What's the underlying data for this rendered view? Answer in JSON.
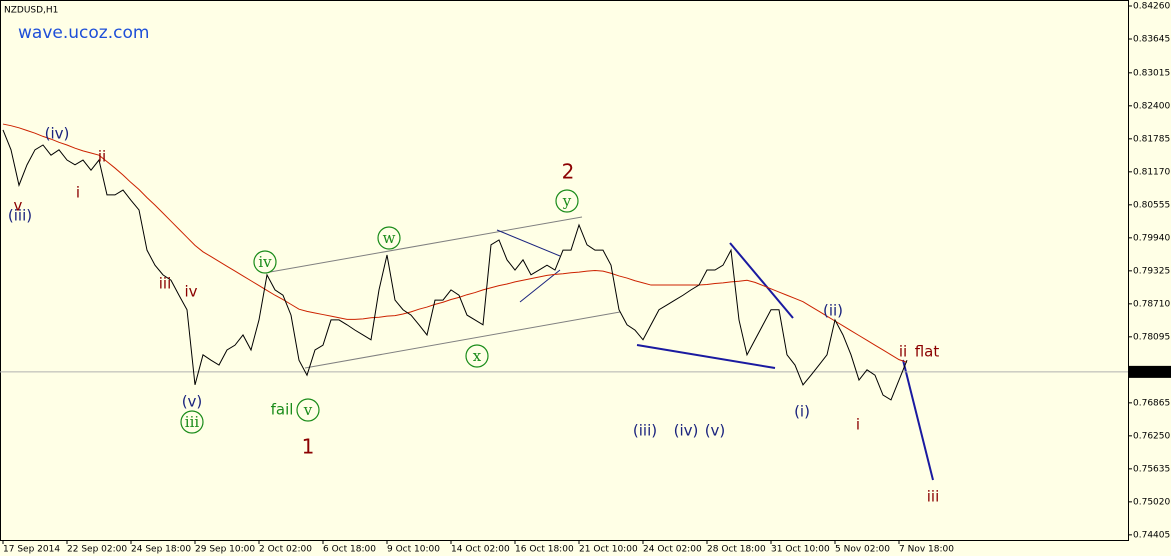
{
  "chart_data": {
    "type": "line",
    "symbol": "NZDUSD,H1",
    "watermark": "wave.ucoz.com",
    "categories": [
      "17 Sep 2014",
      null,
      null,
      null,
      null,
      null,
      null,
      null,
      "22 Sep 02:00",
      null,
      null,
      null,
      null,
      null,
      null,
      null,
      "24 Sep 18:00",
      null,
      null,
      null,
      null,
      null,
      null,
      null,
      "29 Sep 10:00",
      null,
      null,
      null,
      null,
      null,
      null,
      null,
      "2 Oct 02:00",
      null,
      null,
      null,
      null,
      null,
      null,
      null,
      "6 Oct 18:00",
      null,
      null,
      null,
      null,
      null,
      null,
      null,
      "9 Oct 10:00",
      null,
      null,
      null,
      null,
      null,
      null,
      null,
      "14 Oct 02:00",
      null,
      null,
      null,
      null,
      null,
      null,
      null,
      "16 Oct 18:00",
      null,
      null,
      null,
      null,
      null,
      null,
      null,
      "21 Oct 10:00",
      null,
      null,
      null,
      null,
      null,
      null,
      null,
      "24 Oct 02:00",
      null,
      null,
      null,
      null,
      null,
      null,
      null,
      "28 Oct 18:00",
      null,
      null,
      null,
      null,
      null,
      null,
      null,
      "31 Oct 10:00",
      null,
      null,
      null,
      null,
      null,
      null,
      null,
      "5 Nov 02:00",
      null,
      null,
      null,
      null,
      null,
      null,
      null,
      "7 Nov 18:00",
      null
    ],
    "series": [
      {
        "color": "#000000",
        "values": [
          0.8195,
          0.8158,
          0.8092,
          0.813,
          0.8158,
          0.8167,
          0.8148,
          0.8158,
          0.8139,
          0.813,
          0.8139,
          0.812,
          0.8139,
          0.8074,
          0.8074,
          0.8083,
          0.8064,
          0.8046,
          0.7971,
          0.7943,
          0.7925,
          0.7915,
          0.7887,
          0.786,
          0.772,
          0.7776,
          0.7766,
          0.7757,
          0.7785,
          0.7794,
          0.7813,
          0.7785,
          0.7841,
          0.7925,
          0.7897,
          0.7887,
          0.785,
          0.7766,
          0.7738,
          0.7785,
          0.7794,
          0.7841,
          0.7841,
          0.7832,
          0.7822,
          0.7813,
          0.7804,
          0.7897,
          0.7962,
          0.7878,
          0.786,
          0.785,
          0.7832,
          0.7813,
          0.7878,
          0.7878,
          0.7897,
          0.7887,
          0.785,
          0.7841,
          0.7832,
          0.7981,
          0.799,
          0.7953,
          0.7934,
          0.7953,
          0.7925,
          0.7934,
          0.7943,
          0.7934,
          0.7971,
          0.7971,
          0.8018,
          0.7981,
          0.7971,
          0.7971,
          0.7943,
          0.786,
          0.7832,
          0.7822,
          0.7804,
          0.7832,
          0.786,
          0.7869,
          0.7878,
          0.7887,
          0.7897,
          0.7906,
          0.7934,
          0.7934,
          0.7943,
          0.7971,
          0.7841,
          0.7776,
          0.7804,
          0.7832,
          0.786,
          0.786,
          0.7776,
          0.7757,
          0.772,
          0.7738,
          0.7757,
          0.7776,
          0.7841,
          0.7813,
          0.7776,
          0.7729,
          0.7748,
          0.7738,
          0.7701,
          0.7692,
          0.7729,
          0.7766
        ]
      },
      {
        "color": "#cc2200",
        "values": [
          0.8206,
          0.8203,
          0.8199,
          0.8194,
          0.8189,
          0.8183,
          0.8178,
          0.8172,
          0.8167,
          0.8161,
          0.8156,
          0.8152,
          0.8148,
          0.8136,
          0.8124,
          0.8111,
          0.8097,
          0.8084,
          0.8069,
          0.8055,
          0.804,
          0.8025,
          0.801,
          0.7995,
          0.798,
          0.7968,
          0.7959,
          0.795,
          0.7941,
          0.7932,
          0.7923,
          0.7914,
          0.7905,
          0.7896,
          0.7887,
          0.7879,
          0.787,
          0.7861,
          0.7857,
          0.7854,
          0.7851,
          0.7848,
          0.7845,
          0.7842,
          0.7842,
          0.7843,
          0.7845,
          0.7846,
          0.7848,
          0.7849,
          0.7852,
          0.7856,
          0.7861,
          0.7865,
          0.787,
          0.7874,
          0.7879,
          0.7883,
          0.7888,
          0.7892,
          0.7897,
          0.7901,
          0.7905,
          0.7908,
          0.7912,
          0.7915,
          0.7918,
          0.7921,
          0.7924,
          0.7926,
          0.7927,
          0.7929,
          0.793,
          0.7932,
          0.7933,
          0.7932,
          0.7928,
          0.7923,
          0.7919,
          0.7914,
          0.791,
          0.7906,
          0.7906,
          0.7906,
          0.7906,
          0.7906,
          0.7906,
          0.7906,
          0.7907,
          0.7909,
          0.791,
          0.7912,
          0.7913,
          0.7915,
          0.7911,
          0.7905,
          0.7899,
          0.7893,
          0.7887,
          0.7881,
          0.7875,
          0.7866,
          0.7857,
          0.7848,
          0.7839,
          0.783,
          0.7821,
          0.7812,
          0.7803,
          0.7794,
          0.7785,
          0.7776,
          0.7767,
          0.7762
        ]
      }
    ],
    "ylim": [
      0.74309,
      0.84372
    ],
    "yticks": [
      {
        "value": 0.8426,
        "label": "0.84260"
      },
      0.83645,
      0.83015,
      {
        "value": 0.824,
        "label": "0.82400"
      },
      0.81785,
      {
        "value": 0.8117,
        "label": "0.81170"
      },
      0.80555,
      {
        "value": 0.7994,
        "label": "0.79940"
      },
      0.79325,
      {
        "value": 0.7871,
        "label": "0.78710"
      },
      0.78095,
      0.76865,
      {
        "value": 0.7625,
        "label": "0.76250"
      },
      0.75635,
      {
        "value": 0.7502,
        "label": "0.75020"
      },
      0.74405
    ],
    "current_price": 0.77442,
    "annotations": [
      {
        "text": "v",
        "color": "#8b0000"
      },
      {
        "text": "(iii)",
        "color": "#1a237e"
      },
      {
        "text": "(iv)",
        "color": "#1a237e"
      },
      {
        "text": "ii",
        "color": "#8b0000"
      },
      {
        "text": "i",
        "color": "#8b0000"
      },
      {
        "text": "iii",
        "color": "#8b0000"
      },
      {
        "text": "iv",
        "color": "#8b0000"
      },
      {
        "text": "(v)",
        "color": "#1a237e"
      },
      {
        "text": "iii",
        "color": "#1a8c1a",
        "circled": true
      },
      {
        "text": "iv",
        "color": "#1a8c1a",
        "circled": true
      },
      {
        "text": "fail",
        "color": "#1a8c1a"
      },
      {
        "text": "v",
        "color": "#1a8c1a",
        "circled": true
      },
      {
        "text": "1",
        "color": "#8b0000"
      },
      {
        "text": "w",
        "color": "#1a8c1a",
        "circled": true
      },
      {
        "text": "x",
        "color": "#1a8c1a",
        "circled": true
      },
      {
        "text": "y",
        "color": "#1a8c1a",
        "circled": true
      },
      {
        "text": "2",
        "color": "#8b0000"
      },
      {
        "text": "(iii)",
        "color": "#1a237e"
      },
      {
        "text": "(iv)",
        "color": "#1a237e"
      },
      {
        "text": "(v)",
        "color": "#1a237e"
      },
      {
        "text": "(i)",
        "color": "#1a237e"
      },
      {
        "text": "(ii)",
        "color": "#1a237e"
      },
      {
        "text": "i",
        "color": "#8b0000"
      },
      {
        "text": "ii",
        "color": "#8b0000"
      },
      {
        "text": "flat",
        "color": "#8b0000"
      },
      {
        "text": "iii",
        "color": "#8b0000"
      }
    ]
  }
}
